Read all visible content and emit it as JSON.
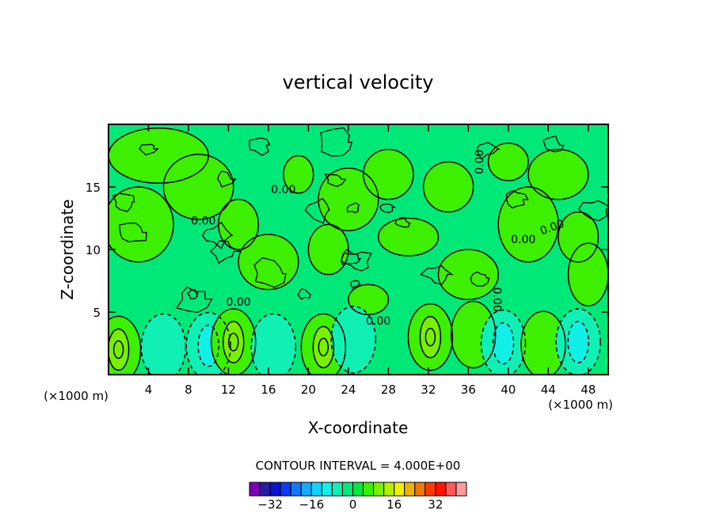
{
  "chart_data": {
    "type": "contour",
    "title": "vertical velocity",
    "xlabel": "X-coordinate",
    "ylabel": "Z-coordinate",
    "x_units": "(×1000 m)",
    "y_units": "(×1000 m)",
    "xlim": [
      0,
      50
    ],
    "ylim": [
      0,
      20
    ],
    "x_ticks": [
      4,
      8,
      12,
      16,
      20,
      24,
      28,
      32,
      36,
      40,
      44,
      48
    ],
    "y_ticks": [
      5,
      10,
      15
    ],
    "contour_interval_label": "CONTOUR INTERVAL = 4.000E+00",
    "contour_interval": 4,
    "contour_labels": [
      "0.00"
    ],
    "colorbar": {
      "ticks": [
        "-32",
        "-16",
        "0",
        "16",
        "32"
      ],
      "levels": [
        -36,
        -32,
        -28,
        -24,
        -20,
        -16,
        -12,
        -8,
        -4,
        0,
        4,
        8,
        12,
        16,
        20,
        24,
        28,
        32,
        36
      ],
      "colors": [
        "#7a00b4",
        "#2a1aa8",
        "#0a14d2",
        "#0a3cf0",
        "#1478ff",
        "#14a8ff",
        "#14d2ff",
        "#10f0e6",
        "#10f0b4",
        "#00e878",
        "#00e840",
        "#3cf000",
        "#78f000",
        "#b4f000",
        "#f0f000",
        "#f0b400",
        "#f07800",
        "#ff3c00",
        "#ff1400",
        "#ff5a5a",
        "#ff9a9a"
      ]
    },
    "features": [
      {
        "kind": "updraft",
        "x": 1.0,
        "z": 2.0,
        "value": 8
      },
      {
        "kind": "downdraft",
        "x": 5.5,
        "z": 2.2,
        "value": -4
      },
      {
        "kind": "downdraft",
        "x": 10.0,
        "z": 2.3,
        "value": -8
      },
      {
        "kind": "updraft",
        "x": 12.5,
        "z": 2.6,
        "value": 8
      },
      {
        "kind": "downdraft",
        "x": 16.5,
        "z": 2.2,
        "value": -4
      },
      {
        "kind": "updraft",
        "x": 21.5,
        "z": 2.2,
        "value": 8
      },
      {
        "kind": "downdraft",
        "x": 24.5,
        "z": 2.8,
        "value": -4
      },
      {
        "kind": "updraft",
        "x": 32.2,
        "z": 3.0,
        "value": 8
      },
      {
        "kind": "updraft",
        "x": 36.5,
        "z": 3.2,
        "value": 4
      },
      {
        "kind": "downdraft",
        "x": 39.5,
        "z": 2.5,
        "value": -8
      },
      {
        "kind": "updraft",
        "x": 43.5,
        "z": 2.4,
        "value": 4
      },
      {
        "kind": "downdraft",
        "x": 47.0,
        "z": 2.6,
        "value": -8
      }
    ]
  }
}
